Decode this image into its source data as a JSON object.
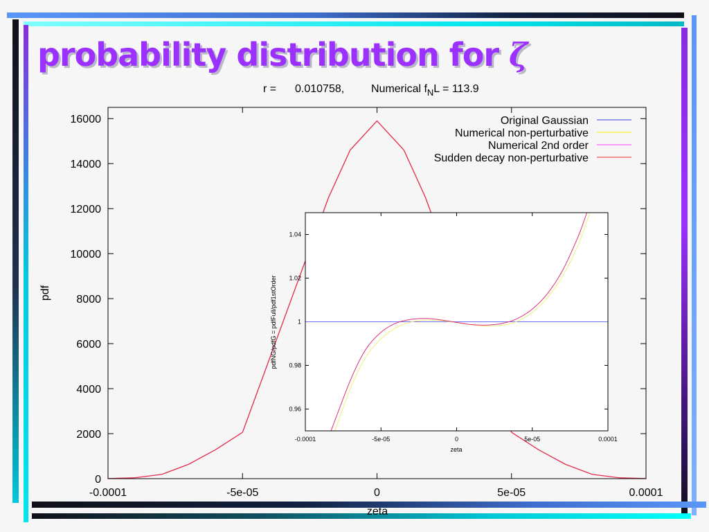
{
  "slide": {
    "title": "probability distribution for",
    "title_symbol": "ζ"
  },
  "colors": {
    "title": "#9b30ff",
    "bar_cyan": "#00e5ee",
    "bar_purple": "#8a2be2",
    "bar_blue": "#4f94f0",
    "bar_dark": "#101018"
  },
  "chart_data": [
    {
      "type": "line",
      "title": "r =     0.010758,      Numerical f_N L = 113.9",
      "title_parts": {
        "r_label": "r =",
        "r_value": "0.010758,",
        "right_prefix": "Numerical f",
        "right_sub": "N",
        "right_suffix": "L = 113.9"
      },
      "xlabel": "zeta",
      "ylabel": "pdf",
      "xlim": [
        -0.0001,
        0.0001
      ],
      "ylim": [
        0,
        16500
      ],
      "x_ticks": [
        -0.0001,
        -5e-05,
        0,
        5e-05,
        0.0001
      ],
      "x_tick_labels": [
        "-0.0001",
        "-5e-05",
        "0",
        "5e-05",
        "0.0001"
      ],
      "y_ticks": [
        0,
        2000,
        4000,
        6000,
        8000,
        10000,
        12000,
        14000,
        16000
      ],
      "y_tick_labels": [
        "0",
        "2000",
        "4000",
        "6000",
        "8000",
        "10000",
        "12000",
        "14000",
        "16000"
      ],
      "legend_position": "top-right",
      "series": [
        {
          "name": "Original Gaussian",
          "color": "#3f3fdf"
        },
        {
          "name": "Numerical non-perturbative",
          "color": "#f0f000"
        },
        {
          "name": "Numerical 2nd order",
          "color": "#ff40ff"
        },
        {
          "name": "Sudden decay non-perturbative",
          "color": "#e0303a"
        }
      ],
      "curve": {
        "peak_x": 0,
        "peak_y": 15900,
        "points": [
          [
            -0.0001,
            5
          ],
          [
            -9e-05,
            40
          ],
          [
            -8e-05,
            190
          ],
          [
            -7e-05,
            640
          ],
          [
            -6e-05,
            1290
          ],
          [
            -5e-05,
            2060
          ],
          [
            -1.8e-05,
            12500
          ],
          [
            -1e-05,
            14600
          ],
          [
            0,
            15900
          ],
          [
            1e-05,
            14600
          ],
          [
            1.8e-05,
            12500
          ],
          [
            5e-05,
            2060
          ],
          [
            6e-05,
            1290
          ],
          [
            7e-05,
            640
          ],
          [
            8e-05,
            190
          ],
          [
            9e-05,
            40
          ],
          [
            0.0001,
            5
          ]
        ]
      }
    },
    {
      "type": "line",
      "xlabel": "zeta",
      "ylabel": "pdfNG/pdfG = pdfFull/pdf1stOrder",
      "xlim": [
        -0.0001,
        0.0001
      ],
      "ylim": [
        0.95,
        1.05
      ],
      "x_ticks": [
        -0.0001,
        -5e-05,
        0,
        5e-05,
        0.0001
      ],
      "x_tick_labels": [
        "-0.0001",
        "-5e-05",
        "0",
        "5e-05",
        "0.0001"
      ],
      "y_ticks": [
        0.96,
        0.98,
        1,
        1.02,
        1.04
      ],
      "y_tick_labels": [
        "0.96",
        "0.98",
        "1",
        "1.02",
        "1.04"
      ],
      "series": [
        {
          "name": "Original Gaussian",
          "color": "#6e6ef0",
          "x": [
            -0.0001,
            0.0001
          ],
          "y": [
            1,
            1
          ]
        },
        {
          "name": "Numerical non-perturbative",
          "color": "#f0f07a",
          "x": [
            -8.05e-05,
            -7e-05,
            -6e-05,
            -5e-05,
            -4e-05,
            -3e-05,
            -2e-05,
            -1e-05,
            0,
            1e-05,
            2e-05,
            3e-05,
            4e-05,
            5e-05,
            6e-05,
            7e-05,
            8e-05,
            8.81e-05
          ],
          "y": [
            0.95,
            0.9698,
            0.9839,
            0.9922,
            0.9973,
            0.9999,
            1.0008,
            1.0005,
            0.9996,
            0.9986,
            0.998,
            0.9984,
            1.0002,
            1.0043,
            1.011,
            1.0209,
            1.0345,
            1.05
          ]
        },
        {
          "name": "Sudden decay non-perturbative",
          "color": "#e0307a",
          "x": [
            -8.3e-05,
            -7e-05,
            -6e-05,
            -5e-05,
            -4e-05,
            -3e-05,
            -2e-05,
            -1e-05,
            0,
            1e-05,
            2e-05,
            3e-05,
            4e-05,
            5e-05,
            6e-05,
            7e-05,
            8e-05,
            8.61e-05
          ],
          "y": [
            0.95,
            0.9736,
            0.9874,
            0.9952,
            0.9994,
            1.0011,
            1.0015,
            1.0008,
            0.9997,
            0.9987,
            0.9985,
            0.9992,
            1.0014,
            1.0058,
            1.0129,
            1.0235,
            1.0385,
            1.05
          ]
        }
      ]
    }
  ]
}
